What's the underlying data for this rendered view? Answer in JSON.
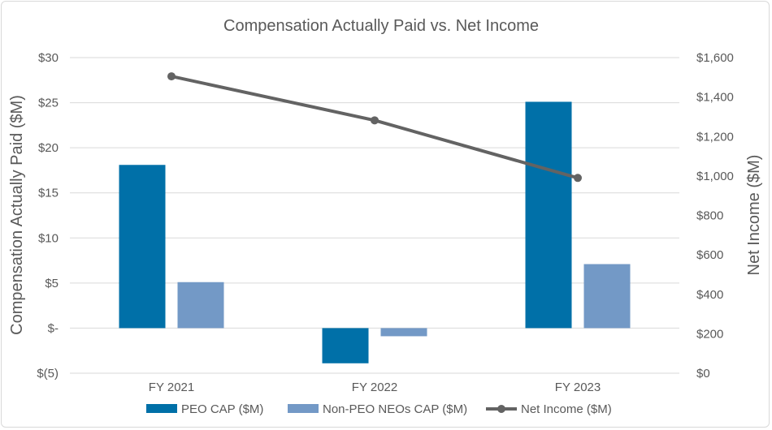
{
  "chart_data": {
    "type": "bar",
    "title": "Compensation Actually Paid vs. Net Income",
    "categories": [
      "FY 2021",
      "FY 2022",
      "FY 2023"
    ],
    "series": [
      {
        "name": "PEO CAP ($M)",
        "type": "bar",
        "axis": "left",
        "color": "#0070a8",
        "values": [
          18.1,
          -3.9,
          25.1
        ]
      },
      {
        "name": "Non-PEO NEOs CAP ($M)",
        "type": "bar",
        "axis": "left",
        "color": "#7399c6",
        "values": [
          5.1,
          -0.9,
          7.1
        ]
      },
      {
        "name": "Net Income ($M)",
        "type": "line",
        "axis": "right",
        "color": "#636363",
        "values": [
          1505,
          1282,
          990
        ]
      }
    ],
    "ylabel_left": "Compensation Actually Paid ($M)",
    "ylabel_right": "Net Income ($M)",
    "ylim_left": [
      -5,
      30
    ],
    "ylim_right": [
      0,
      1600
    ],
    "left_ticks": [
      {
        "value": 30,
        "label": "$30"
      },
      {
        "value": 25,
        "label": "$25"
      },
      {
        "value": 20,
        "label": "$20"
      },
      {
        "value": 15,
        "label": "$15"
      },
      {
        "value": 10,
        "label": "$10"
      },
      {
        "value": 5,
        "label": "$5"
      },
      {
        "value": 0,
        "label": "$-"
      },
      {
        "value": -5,
        "label": "$(5)"
      }
    ],
    "right_ticks": [
      {
        "value": 1600,
        "label": "$1,600"
      },
      {
        "value": 1400,
        "label": "$1,400"
      },
      {
        "value": 1200,
        "label": "$1,200"
      },
      {
        "value": 1000,
        "label": "$1,000"
      },
      {
        "value": 800,
        "label": "$800"
      },
      {
        "value": 600,
        "label": "$600"
      },
      {
        "value": 400,
        "label": "$400"
      },
      {
        "value": 200,
        "label": "$200"
      },
      {
        "value": 0,
        "label": "$0"
      }
    ],
    "gridlines": true,
    "legend_position": "bottom"
  }
}
